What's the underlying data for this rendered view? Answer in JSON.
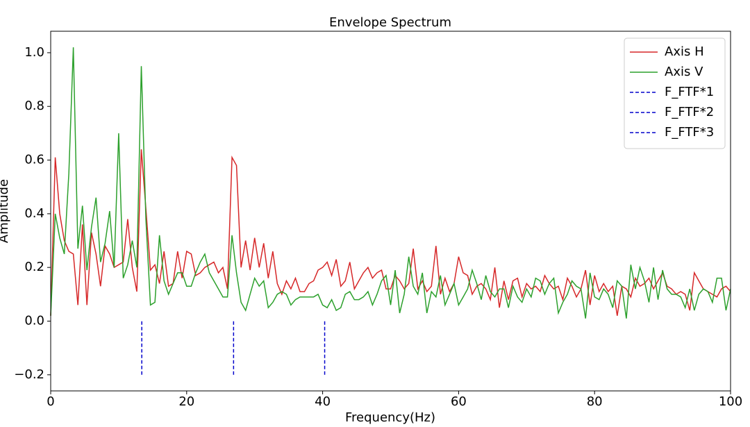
{
  "chart_data": {
    "type": "line",
    "title": "Envelope Spectrum",
    "x_label": "Frequency(Hz)",
    "y_label": "Amplitude",
    "x": [
      0,
      0.67,
      1.33,
      2,
      2.67,
      3.33,
      4,
      4.67,
      5.33,
      6,
      6.67,
      7.33,
      8,
      8.67,
      9.33,
      10,
      10.67,
      11.33,
      12,
      12.67,
      13.33,
      14,
      14.67,
      15.33,
      16,
      16.67,
      17.33,
      18,
      18.67,
      19.33,
      20,
      20.67,
      21.33,
      22,
      22.67,
      23.33,
      24,
      24.67,
      25.33,
      26,
      26.67,
      27.33,
      28,
      28.67,
      29.33,
      30,
      30.67,
      31.33,
      32,
      32.67,
      33.33,
      34,
      34.67,
      35.33,
      36,
      36.67,
      37.33,
      38,
      38.67,
      39.33,
      40,
      40.67,
      41.33,
      42,
      42.67,
      43.33,
      44,
      44.67,
      45.33,
      46,
      46.67,
      47.33,
      48,
      48.67,
      49.33,
      50,
      50.67,
      51.33,
      52,
      52.67,
      53.33,
      54,
      54.67,
      55.33,
      56,
      56.67,
      57.33,
      58,
      58.67,
      59.33,
      60,
      60.67,
      61.33,
      62,
      62.67,
      63.33,
      64,
      64.67,
      65.33,
      66,
      66.67,
      67.33,
      68,
      68.67,
      69.33,
      70,
      70.67,
      71.33,
      72,
      72.67,
      73.33,
      74,
      74.67,
      75.33,
      76,
      76.67,
      77.33,
      78,
      78.67,
      79.33,
      80,
      80.67,
      81.33,
      82,
      82.67,
      83.33,
      84,
      84.67,
      85.33,
      86,
      86.67,
      87.33,
      88,
      88.67,
      89.33,
      90,
      90.67,
      91.33,
      92,
      92.67,
      93.33,
      94,
      94.67,
      95.33,
      96,
      96.67,
      97.33,
      98,
      98.67,
      99.33,
      100
    ],
    "series": [
      {
        "name": "Axis H",
        "color": "#d62728",
        "values": [
          0.02,
          0.61,
          0.4,
          0.3,
          0.26,
          0.25,
          0.06,
          0.36,
          0.06,
          0.33,
          0.25,
          0.13,
          0.28,
          0.25,
          0.2,
          0.21,
          0.22,
          0.38,
          0.2,
          0.11,
          0.64,
          0.42,
          0.19,
          0.21,
          0.14,
          0.26,
          0.13,
          0.14,
          0.26,
          0.16,
          0.26,
          0.25,
          0.17,
          0.18,
          0.2,
          0.21,
          0.22,
          0.18,
          0.2,
          0.12,
          0.61,
          0.58,
          0.2,
          0.3,
          0.19,
          0.31,
          0.2,
          0.29,
          0.16,
          0.26,
          0.14,
          0.1,
          0.15,
          0.12,
          0.16,
          0.11,
          0.11,
          0.14,
          0.15,
          0.19,
          0.2,
          0.22,
          0.17,
          0.23,
          0.13,
          0.15,
          0.22,
          0.12,
          0.15,
          0.18,
          0.2,
          0.16,
          0.18,
          0.19,
          0.12,
          0.12,
          0.17,
          0.15,
          0.12,
          0.14,
          0.27,
          0.12,
          0.15,
          0.11,
          0.13,
          0.28,
          0.1,
          0.16,
          0.11,
          0.14,
          0.24,
          0.18,
          0.17,
          0.1,
          0.13,
          0.14,
          0.12,
          0.08,
          0.2,
          0.05,
          0.15,
          0.08,
          0.15,
          0.16,
          0.09,
          0.14,
          0.12,
          0.13,
          0.11,
          0.17,
          0.14,
          0.12,
          0.13,
          0.08,
          0.16,
          0.13,
          0.09,
          0.12,
          0.19,
          0.06,
          0.17,
          0.11,
          0.14,
          0.11,
          0.13,
          0.02,
          0.13,
          0.12,
          0.09,
          0.16,
          0.13,
          0.14,
          0.16,
          0.12,
          0.15,
          0.18,
          0.13,
          0.12,
          0.1,
          0.11,
          0.1,
          0.04,
          0.18,
          0.15,
          0.12,
          0.11,
          0.1,
          0.09,
          0.12,
          0.13,
          0.11
        ]
      },
      {
        "name": "Axis V",
        "color": "#2ca02c",
        "values": [
          0.02,
          0.4,
          0.31,
          0.25,
          0.55,
          1.02,
          0.27,
          0.43,
          0.19,
          0.35,
          0.46,
          0.22,
          0.29,
          0.41,
          0.2,
          0.7,
          0.16,
          0.21,
          0.3,
          0.2,
          0.95,
          0.38,
          0.06,
          0.07,
          0.32,
          0.15,
          0.1,
          0.14,
          0.18,
          0.18,
          0.13,
          0.13,
          0.18,
          0.22,
          0.25,
          0.18,
          0.15,
          0.12,
          0.09,
          0.09,
          0.32,
          0.18,
          0.07,
          0.04,
          0.1,
          0.16,
          0.13,
          0.15,
          0.05,
          0.07,
          0.1,
          0.11,
          0.1,
          0.06,
          0.08,
          0.09,
          0.09,
          0.09,
          0.09,
          0.1,
          0.06,
          0.05,
          0.08,
          0.04,
          0.05,
          0.1,
          0.11,
          0.08,
          0.08,
          0.09,
          0.11,
          0.06,
          0.1,
          0.15,
          0.17,
          0.06,
          0.19,
          0.03,
          0.1,
          0.24,
          0.13,
          0.1,
          0.18,
          0.03,
          0.11,
          0.09,
          0.17,
          0.06,
          0.1,
          0.14,
          0.06,
          0.09,
          0.12,
          0.19,
          0.14,
          0.08,
          0.17,
          0.11,
          0.09,
          0.12,
          0.12,
          0.05,
          0.13,
          0.09,
          0.07,
          0.12,
          0.09,
          0.16,
          0.15,
          0.1,
          0.14,
          0.16,
          0.03,
          0.07,
          0.1,
          0.15,
          0.13,
          0.12,
          0.01,
          0.18,
          0.09,
          0.08,
          0.12,
          0.1,
          0.05,
          0.15,
          0.13,
          0.01,
          0.21,
          0.12,
          0.2,
          0.15,
          0.07,
          0.2,
          0.08,
          0.19,
          0.12,
          0.1,
          0.1,
          0.09,
          0.05,
          0.12,
          0.04,
          0.1,
          0.12,
          0.11,
          0.07,
          0.16,
          0.16,
          0.04,
          0.12
        ]
      }
    ],
    "vlines": [
      {
        "name": "F_FTF*1",
        "color": "#0000cc",
        "x": 13.4,
        "ymin": -0.2,
        "ymax": 0
      },
      {
        "name": "F_FTF*2",
        "color": "#0000cc",
        "x": 26.9,
        "ymin": -0.2,
        "ymax": 0
      },
      {
        "name": "F_FTF*3",
        "color": "#0000cc",
        "x": 40.3,
        "ymin": -0.2,
        "ymax": 0
      }
    ],
    "xlim": [
      0,
      100
    ],
    "ylim": [
      -0.26,
      1.08
    ],
    "xticks": [
      0,
      20,
      40,
      60,
      80,
      100
    ],
    "yticks": [
      {
        "value": -0.2,
        "label": "−0.2"
      },
      {
        "value": 0,
        "label": "0.0"
      },
      0.2,
      0.4,
      0.6,
      0.8,
      {
        "value": 1,
        "label": "1.0"
      }
    ],
    "legend": "upper right"
  }
}
